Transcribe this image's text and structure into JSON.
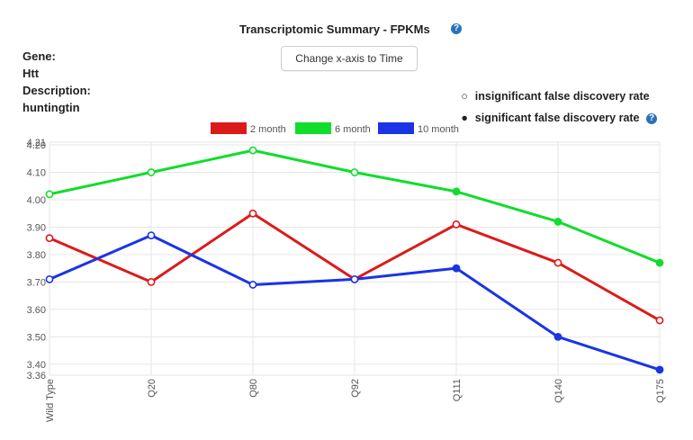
{
  "header": {
    "title": "Transcriptomic Summary - FPKMs",
    "help_glyph": "?"
  },
  "info": {
    "gene_label": "Gene:",
    "gene_value": "Htt",
    "description_label": "Description:",
    "description_value": "huntingtin"
  },
  "toolbar": {
    "axis_button_label": "Change x-axis to Time"
  },
  "fdr_legend": {
    "insignificant_symbol": "○",
    "insignificant_label": "insignificant false discovery rate",
    "significant_symbol": "●",
    "significant_label": "significant false discovery rate",
    "help_glyph": "?"
  },
  "chart_data": {
    "type": "line",
    "categories": [
      "Wild Type",
      "Q20",
      "Q80",
      "Q92",
      "Q111",
      "Q140",
      "Q175"
    ],
    "ylim": [
      3.36,
      4.21
    ],
    "yticks": [
      3.36,
      3.4,
      3.5,
      3.6,
      3.7,
      3.8,
      3.9,
      4.0,
      4.1,
      4.2,
      4.21
    ],
    "ytick_labels": [
      "3.36",
      "3.40",
      "3.50",
      "3.60",
      "3.70",
      "3.80",
      "3.90",
      "4.00",
      "4.10",
      "4.20",
      "4.21"
    ],
    "grid": true,
    "legend_position": "top",
    "series": [
      {
        "name": "2 month",
        "color": "#dd1a1a",
        "values": [
          3.86,
          3.7,
          3.95,
          3.71,
          3.91,
          3.77,
          3.56
        ],
        "significant": [
          false,
          false,
          false,
          false,
          false,
          false,
          false
        ]
      },
      {
        "name": "6 month",
        "color": "#11dd2b",
        "values": [
          4.02,
          4.1,
          4.18,
          4.1,
          4.03,
          3.92,
          3.77
        ],
        "significant": [
          false,
          false,
          false,
          false,
          true,
          true,
          true
        ]
      },
      {
        "name": "10 month",
        "color": "#1a34e6",
        "values": [
          3.71,
          3.87,
          3.69,
          3.71,
          3.75,
          3.5,
          3.38
        ],
        "significant": [
          false,
          false,
          false,
          false,
          true,
          true,
          true
        ]
      }
    ]
  }
}
